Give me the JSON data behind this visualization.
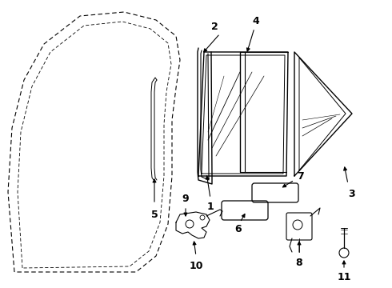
{
  "bg_color": "#ffffff",
  "line_color": "#000000",
  "figsize": [
    4.9,
    3.6
  ],
  "dpi": 100
}
